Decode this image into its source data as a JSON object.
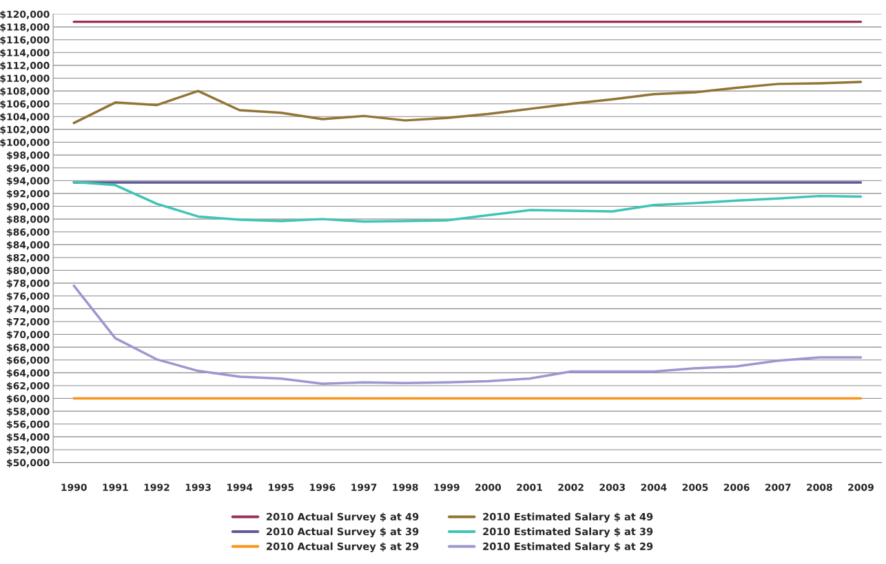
{
  "chart_data": {
    "type": "line",
    "categories": [
      "1990",
      "1991",
      "1992",
      "1993",
      "1994",
      "1995",
      "1996",
      "1997",
      "1998",
      "1999",
      "2000",
      "2001",
      "2002",
      "2003",
      "2004",
      "2005",
      "2006",
      "2007",
      "2008",
      "2009"
    ],
    "series": [
      {
        "name": "2010 Actual Survey $ at 49",
        "color": "#9b2f5b",
        "values": [
          118800,
          118800,
          118800,
          118800,
          118800,
          118800,
          118800,
          118800,
          118800,
          118800,
          118800,
          118800,
          118800,
          118800,
          118800,
          118800,
          118800,
          118800,
          118800,
          118800
        ]
      },
      {
        "name": "2010 Actual Survey $ at 39",
        "color": "#5f5a99",
        "values": [
          93700,
          93700,
          93700,
          93700,
          93700,
          93700,
          93700,
          93700,
          93700,
          93700,
          93700,
          93700,
          93700,
          93700,
          93700,
          93700,
          93700,
          93700,
          93700,
          93700
        ]
      },
      {
        "name": "2010 Actual Survey $ at 29",
        "color": "#f7941d",
        "values": [
          60000,
          60000,
          60000,
          60000,
          60000,
          60000,
          60000,
          60000,
          60000,
          60000,
          60000,
          60000,
          60000,
          60000,
          60000,
          60000,
          60000,
          60000,
          60000,
          60000
        ]
      },
      {
        "name": "2010 Estimated Salary $ at 49",
        "color": "#927435",
        "values": [
          103000,
          106200,
          105800,
          108000,
          105000,
          104600,
          103600,
          104100,
          103400,
          103800,
          104400,
          105200,
          106000,
          106700,
          107500,
          107800,
          108500,
          109100,
          109200,
          109400
        ]
      },
      {
        "name": "2010 Estimated Salary $ at 39",
        "color": "#3fc4b7",
        "values": [
          93800,
          93300,
          90400,
          88400,
          87900,
          87700,
          88000,
          87600,
          87700,
          87800,
          88600,
          89400,
          89300,
          89200,
          90200,
          90500,
          90900,
          91200,
          91600,
          91500
        ]
      },
      {
        "name": "2010 Estimated Salary $ at 29",
        "color": "#9b97d0",
        "values": [
          77600,
          69400,
          66100,
          64300,
          63400,
          63100,
          62300,
          62500,
          62400,
          62500,
          62700,
          63100,
          64200,
          64200,
          64200,
          64700,
          65000,
          65900,
          66400,
          66400
        ]
      }
    ],
    "ylim": [
      50000,
      120000
    ],
    "yticks": [
      {
        "value": 50000,
        "label": "$50,000"
      },
      {
        "value": 52000,
        "label": "$52,000"
      },
      {
        "value": 54000,
        "label": "$54,000"
      },
      {
        "value": 56000,
        "label": "$56,000"
      },
      {
        "value": 58000,
        "label": "$58,000"
      },
      {
        "value": 60000,
        "label": "$60,000"
      },
      {
        "value": 62000,
        "label": "$62,000"
      },
      {
        "value": 64000,
        "label": "$64,000"
      },
      {
        "value": 66000,
        "label": "$66,000"
      },
      {
        "value": 68000,
        "label": "$68,000"
      },
      {
        "value": 70000,
        "label": "$70,000"
      },
      {
        "value": 72000,
        "label": "$72,000"
      },
      {
        "value": 74000,
        "label": "$74,000"
      },
      {
        "value": 76000,
        "label": "$76,000"
      },
      {
        "value": 78000,
        "label": "$78,000"
      },
      {
        "value": 80000,
        "label": "$80,000"
      },
      {
        "value": 82000,
        "label": "$82,000"
      },
      {
        "value": 84000,
        "label": "$84,000"
      },
      {
        "value": 86000,
        "label": "$86,000"
      },
      {
        "value": 88000,
        "label": "$88,000"
      },
      {
        "value": 90000,
        "label": "$90,000"
      },
      {
        "value": 92000,
        "label": "$92,000"
      },
      {
        "value": 94000,
        "label": "$94,000"
      },
      {
        "value": 96000,
        "label": "$96,000"
      },
      {
        "value": 98000,
        "label": "$98,000"
      },
      {
        "value": 100000,
        "label": "$100,000"
      },
      {
        "value": 102000,
        "label": "$102,000"
      },
      {
        "value": 104000,
        "label": "$104,000"
      },
      {
        "value": 106000,
        "label": "$106,000"
      },
      {
        "value": 108000,
        "label": "$108,000"
      },
      {
        "value": 110000,
        "label": "$110,000"
      },
      {
        "value": 112000,
        "label": "$112,000"
      },
      {
        "value": 114000,
        "label": "$114,000"
      },
      {
        "value": 116000,
        "label": "$116,000"
      },
      {
        "value": 118000,
        "label": "$118,000"
      },
      {
        "value": 120000,
        "label": "$120,000"
      }
    ],
    "grid": "y",
    "legend": "bottom",
    "marker": "none",
    "line_style": "solid"
  }
}
